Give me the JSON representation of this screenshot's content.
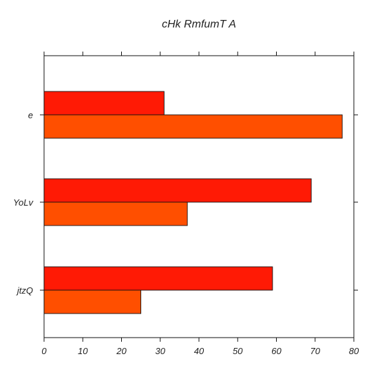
{
  "chart_data": {
    "type": "bar",
    "orientation": "horizontal",
    "title": "cHk RmfumT A",
    "xlabel": "",
    "ylabel": "",
    "categories": [
      "e",
      "YoLv",
      "jtzQ"
    ],
    "series": [
      {
        "values": [
          31,
          69,
          59
        ],
        "color": "#ff1a05"
      },
      {
        "values": [
          77,
          37,
          25
        ],
        "color": "#ff4f00"
      }
    ],
    "xlim": [
      0,
      80
    ],
    "xticks": [
      0,
      10,
      20,
      30,
      40,
      50,
      60,
      70,
      80
    ],
    "xtick_labels": [
      "0",
      "10",
      "20",
      "30",
      "40",
      "50",
      "60",
      "70",
      "80"
    ],
    "grid": false,
    "legend": "none"
  }
}
